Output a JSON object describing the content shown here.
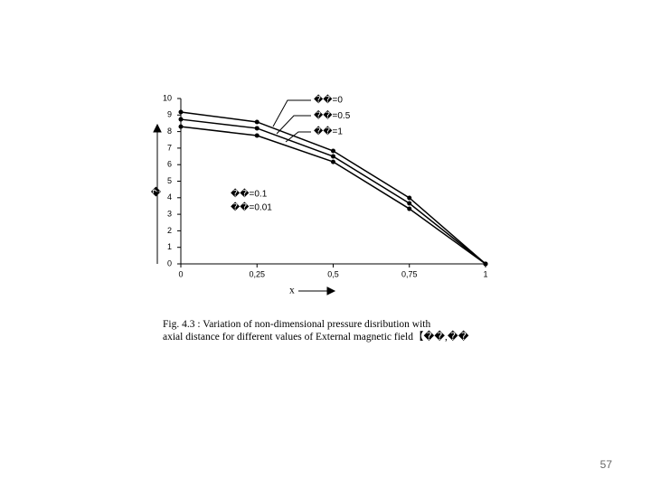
{
  "chart_data": {
    "type": "line",
    "x": [
      0,
      0.25,
      0.5,
      0.75,
      1
    ],
    "series": [
      {
        "name": "��=0",
        "color": "#000000",
        "values": [
          9.18,
          8.58,
          6.83,
          3.99,
          0
        ]
      },
      {
        "name": "��=0.5",
        "color": "#000000",
        "values": [
          8.74,
          8.2,
          6.5,
          3.66,
          0
        ]
      },
      {
        "name": "��=1",
        "color": "#000000",
        "values": [
          8.3,
          7.76,
          6.17,
          3.33,
          0
        ]
      }
    ],
    "xlim": [
      0,
      1
    ],
    "xticks": [
      0,
      {
        "value": 0.25,
        "label": "0,25"
      },
      {
        "value": 0.5,
        "label": "0,5"
      },
      {
        "value": 0.75,
        "label": "0,75"
      },
      1
    ],
    "ylim": [
      0,
      10
    ],
    "yticks": [
      0,
      1,
      2,
      3,
      4,
      5,
      6,
      7,
      8,
      9,
      10
    ],
    "xlabel": "x",
    "ylabel": "�",
    "annotations": [
      "��=0.1",
      "��=0.01"
    ],
    "caption": [
      "Fig. 4.3 : Variation of non-dimensional pressure disribution with",
      "axial distance for different values of External magnetic field【��,��"
    ]
  },
  "page_number": "57"
}
